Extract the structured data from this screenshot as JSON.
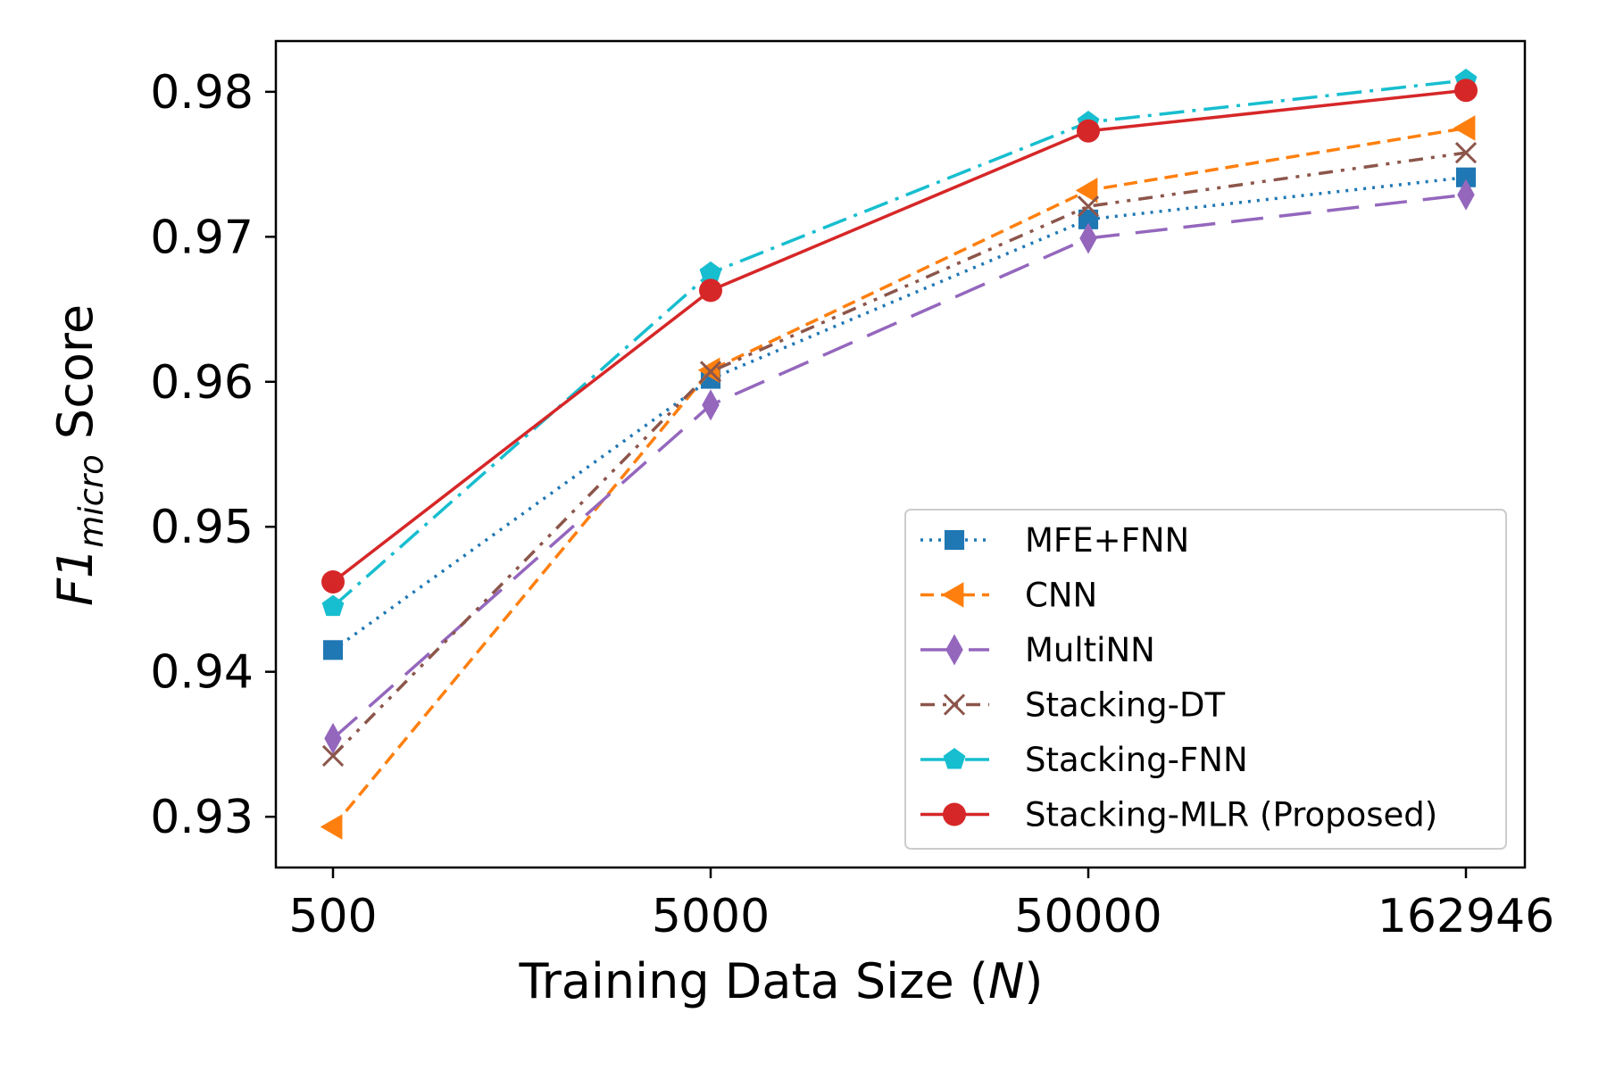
{
  "chart_data": {
    "type": "line",
    "categories": [
      "500",
      "5000",
      "50000",
      "162946"
    ],
    "xlabel": {
      "text": "Training Data Size (",
      "italic": "N",
      "suffix": ")"
    },
    "ylabel": {
      "main": "F1",
      "subscript": "micro",
      "suffix": " Score"
    },
    "ylim": [
      0.9265,
      0.9835
    ],
    "yticks": [
      "0.93",
      "0.94",
      "0.95",
      "0.96",
      "0.97",
      "0.98"
    ],
    "ytick_values": [
      0.93,
      0.94,
      0.95,
      0.96,
      0.97,
      0.98
    ],
    "grid": false,
    "legend_position": "lower-right",
    "series": [
      {
        "name": "MFE+FNN",
        "values": [
          0.9415,
          0.9602,
          0.9712,
          0.9741
        ],
        "color": "#1f77b4",
        "dash": "dotted",
        "marker": "square"
      },
      {
        "name": "CNN",
        "values": [
          0.9293,
          0.9608,
          0.9732,
          0.9775
        ],
        "color": "#ff7f0e",
        "dash": "dashed",
        "marker": "triangle-left"
      },
      {
        "name": "MultiNN",
        "values": [
          0.9354,
          0.9584,
          0.9699,
          0.9729
        ],
        "color": "#9467bd",
        "dash": "long-dash",
        "marker": "thin-diamond"
      },
      {
        "name": "Stacking-DT",
        "values": [
          0.9342,
          0.9607,
          0.9721,
          0.9758
        ],
        "color": "#8c564b",
        "dash": "dash-dot-dot",
        "marker": "x"
      },
      {
        "name": "Stacking-FNN",
        "values": [
          0.9445,
          0.9675,
          0.9779,
          0.9808
        ],
        "color": "#17becf",
        "dash": "dash-dot",
        "marker": "pentagon"
      },
      {
        "name": "Stacking-MLR (Proposed)",
        "values": [
          0.9462,
          0.9663,
          0.9773,
          0.9801
        ],
        "color": "#d62728",
        "dash": "solid",
        "marker": "circle"
      }
    ]
  }
}
